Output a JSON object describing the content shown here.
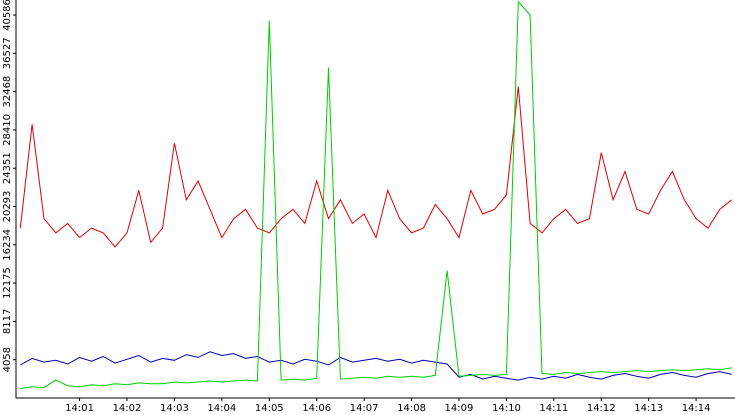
{
  "chart_data": {
    "type": "line",
    "x": [
      839.75,
      840,
      840.25,
      840.5,
      840.75,
      841,
      841.25,
      841.5,
      841.75,
      842,
      842.25,
      842.5,
      842.75,
      843,
      843.25,
      843.5,
      843.75,
      844,
      844.25,
      844.5,
      844.75,
      845,
      845.25,
      845.5,
      845.75,
      846,
      846.25,
      846.5,
      846.75,
      847,
      847.25,
      847.5,
      847.75,
      848,
      848.25,
      848.5,
      848.75,
      849,
      849.25,
      849.5,
      849.75,
      850,
      850.25,
      850.5,
      850.75,
      851,
      851.25,
      851.5,
      851.75,
      852,
      852.25,
      852.5,
      852.75,
      853,
      853.25,
      853.5,
      853.75,
      854,
      854.25,
      854.5,
      854.75
    ],
    "series": [
      {
        "name": "red",
        "color": "#e00000",
        "values": [
          18000,
          29000,
          19000,
          17500,
          18500,
          17000,
          18000,
          17500,
          16000,
          17500,
          22000,
          16500,
          18000,
          27000,
          21000,
          23000,
          20000,
          17000,
          19000,
          20000,
          18000,
          17500,
          19000,
          20000,
          18500,
          23000,
          19000,
          21000,
          18500,
          19500,
          17000,
          22000,
          19000,
          17500,
          18000,
          20500,
          19000,
          17000,
          22000,
          19500,
          20000,
          21500,
          33000,
          18500,
          17500,
          19000,
          20000,
          18500,
          19000,
          26000,
          21000,
          24000,
          20000,
          19500,
          22000,
          24000,
          21000,
          19000,
          18000,
          20000,
          21000
        ]
      },
      {
        "name": "blue",
        "color": "#0000b0",
        "values": [
          3500,
          4200,
          3800,
          4000,
          3600,
          4300,
          3900,
          4400,
          3700,
          4100,
          4500,
          3800,
          4200,
          4000,
          4600,
          4300,
          4900,
          4500,
          4700,
          4200,
          4400,
          3800,
          4000,
          3600,
          4100,
          3900,
          3500,
          4300,
          3800,
          4000,
          4200,
          3900,
          4100,
          3700,
          4000,
          3800,
          3600,
          2200,
          2500,
          2000,
          2300,
          2100,
          1900,
          2200,
          2000,
          2300,
          2100,
          2500,
          2200,
          2000,
          2400,
          2600,
          2300,
          2100,
          2500,
          2700,
          2400,
          2200,
          2600,
          2800,
          2500
        ]
      },
      {
        "name": "green",
        "color": "#00d000",
        "values": [
          1000,
          1200,
          1100,
          1900,
          1300,
          1200,
          1400,
          1300,
          1500,
          1400,
          1600,
          1500,
          1500,
          1700,
          1600,
          1700,
          1800,
          1700,
          1800,
          1900,
          1800,
          40000,
          1900,
          2000,
          1900,
          2100,
          35000,
          2000,
          2100,
          2200,
          2100,
          2300,
          2200,
          2300,
          2200,
          2400,
          13500,
          2300,
          2400,
          2500,
          2400,
          2500,
          42000,
          40586,
          2600,
          2500,
          2700,
          2600,
          2700,
          2800,
          2700,
          2800,
          2900,
          2800,
          2900,
          3000,
          2900,
          3000,
          3100,
          3000,
          3200
        ]
      }
    ],
    "xlim": [
      839.66,
      854.82
    ],
    "xticks": [
      {
        "value": 841,
        "label": "14:01"
      },
      {
        "value": 842,
        "label": "14:02"
      },
      {
        "value": 843,
        "label": "14:03"
      },
      {
        "value": 844,
        "label": "14:04"
      },
      {
        "value": 845,
        "label": "14:05"
      },
      {
        "value": 846,
        "label": "14:06"
      },
      {
        "value": 847,
        "label": "14:07"
      },
      {
        "value": 848,
        "label": "14:08"
      },
      {
        "value": 849,
        "label": "14:09"
      },
      {
        "value": 850,
        "label": "14:10"
      },
      {
        "value": 851,
        "label": "14:11"
      },
      {
        "value": 852,
        "label": "14:12"
      },
      {
        "value": 853,
        "label": "14:13"
      },
      {
        "value": 854,
        "label": "14:14"
      }
    ],
    "ylim": [
      0,
      40586
    ],
    "yticks": [
      4058,
      8117,
      12175,
      16234,
      20293,
      24351,
      28410,
      32468,
      36527,
      40586
    ]
  }
}
